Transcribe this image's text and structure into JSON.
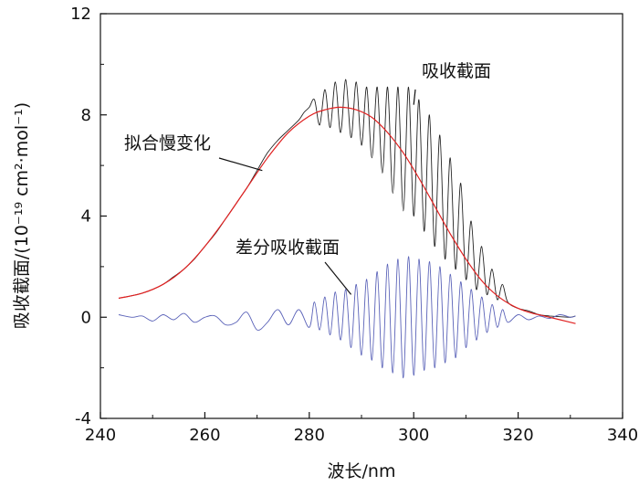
{
  "chart_data": {
    "type": "line",
    "title": "",
    "xlabel": "波长/nm",
    "ylabel": "吸收截面/(10⁻¹⁹ cm²·mol⁻¹)",
    "xlim": [
      240,
      340
    ],
    "ylim": [
      -4,
      12
    ],
    "xticks": [
      "240",
      "260",
      "280",
      "300",
      "320",
      "340"
    ],
    "yticks": [
      "-4",
      "0",
      "4",
      "8",
      "12"
    ],
    "grid": false,
    "series": [
      {
        "name": "吸收截面",
        "color": "#222222",
        "x": [
          243.5,
          246,
          248,
          250,
          252,
          254,
          256,
          258,
          260,
          262,
          264,
          266,
          268,
          270,
          272,
          274,
          276,
          278,
          279,
          280,
          281,
          282,
          283,
          284,
          285,
          286,
          287,
          288,
          289,
          290,
          291,
          292,
          293,
          294,
          295,
          296,
          297,
          298,
          299,
          300,
          301,
          302,
          303,
          304,
          305,
          306,
          307,
          308,
          309,
          310,
          311,
          312,
          313,
          314,
          315,
          316,
          317,
          318,
          320,
          322,
          324,
          326,
          328,
          330,
          331
        ],
        "values": [
          0.75,
          0.85,
          0.95,
          1.1,
          1.3,
          1.6,
          1.9,
          2.3,
          2.8,
          3.3,
          3.9,
          4.5,
          5.1,
          5.8,
          6.5,
          7.0,
          7.4,
          7.8,
          8.1,
          8.3,
          8.6,
          7.6,
          9.0,
          7.5,
          9.3,
          7.3,
          9.4,
          7.1,
          9.3,
          6.8,
          9.1,
          6.3,
          9.1,
          5.7,
          9.1,
          4.9,
          9.1,
          4.2,
          9.1,
          4.0,
          8.6,
          3.4,
          8.0,
          2.8,
          7.2,
          2.3,
          6.3,
          1.9,
          5.3,
          1.5,
          3.8,
          1.1,
          2.8,
          0.9,
          1.9,
          0.7,
          1.3,
          0.6,
          0.35,
          0.25,
          0.1,
          0.05,
          0.02,
          0.0,
          0.05
        ]
      },
      {
        "name": "拟合慢变化",
        "color": "#e02020",
        "x": [
          243.5,
          248,
          252,
          256,
          260,
          264,
          268,
          272,
          276,
          280,
          283,
          286,
          289,
          292,
          295,
          298,
          301,
          304,
          307,
          310,
          313,
          316,
          319,
          322,
          325,
          328,
          331
        ],
        "values": [
          0.75,
          0.95,
          1.3,
          1.9,
          2.8,
          3.9,
          5.1,
          6.3,
          7.3,
          7.95,
          8.2,
          8.3,
          8.2,
          7.9,
          7.3,
          6.5,
          5.5,
          4.4,
          3.3,
          2.3,
          1.45,
          0.85,
          0.45,
          0.2,
          0.05,
          -0.1,
          -0.25
        ]
      },
      {
        "name": "差分吸收截面",
        "color": "#5a62b8",
        "x": [
          243.5,
          246,
          248,
          250,
          252,
          254,
          256,
          258,
          260,
          262,
          264,
          266,
          268,
          270,
          272,
          274,
          276,
          278,
          280,
          281,
          282,
          283,
          284,
          285,
          286,
          287,
          288,
          289,
          290,
          291,
          292,
          293,
          294,
          295,
          296,
          297,
          298,
          299,
          300,
          301,
          302,
          303,
          304,
          305,
          306,
          307,
          308,
          309,
          310,
          311,
          312,
          313,
          314,
          315,
          316,
          317,
          318,
          320,
          322,
          324,
          326,
          328,
          330,
          331
        ],
        "values": [
          0.1,
          0.0,
          0.05,
          -0.15,
          0.1,
          -0.1,
          0.15,
          -0.2,
          0.0,
          0.05,
          -0.3,
          -0.2,
          0.2,
          -0.5,
          -0.2,
          0.3,
          -0.3,
          0.3,
          -0.4,
          0.6,
          -0.5,
          0.8,
          -0.7,
          1.0,
          -0.9,
          1.1,
          -1.2,
          1.3,
          -1.5,
          1.5,
          -1.7,
          1.8,
          -2.0,
          2.1,
          -2.2,
          2.3,
          -2.4,
          2.4,
          -2.3,
          2.3,
          -2.1,
          2.2,
          -2.0,
          2.0,
          -1.8,
          1.7,
          -1.6,
          1.4,
          -1.2,
          1.1,
          -0.9,
          0.8,
          -0.6,
          0.5,
          -0.4,
          0.3,
          -0.2,
          0.1,
          -0.1,
          0.05,
          -0.05,
          0.1,
          0.0,
          0.05
        ]
      }
    ],
    "annotations": [
      {
        "text": "吸收截面",
        "target_x": 300,
        "target_y": 8.4
      },
      {
        "text": "拟合慢变化",
        "target_x": 271,
        "target_y": 5.8
      },
      {
        "text": "差分吸收截面",
        "target_x": 288,
        "target_y": 0.9
      }
    ]
  }
}
